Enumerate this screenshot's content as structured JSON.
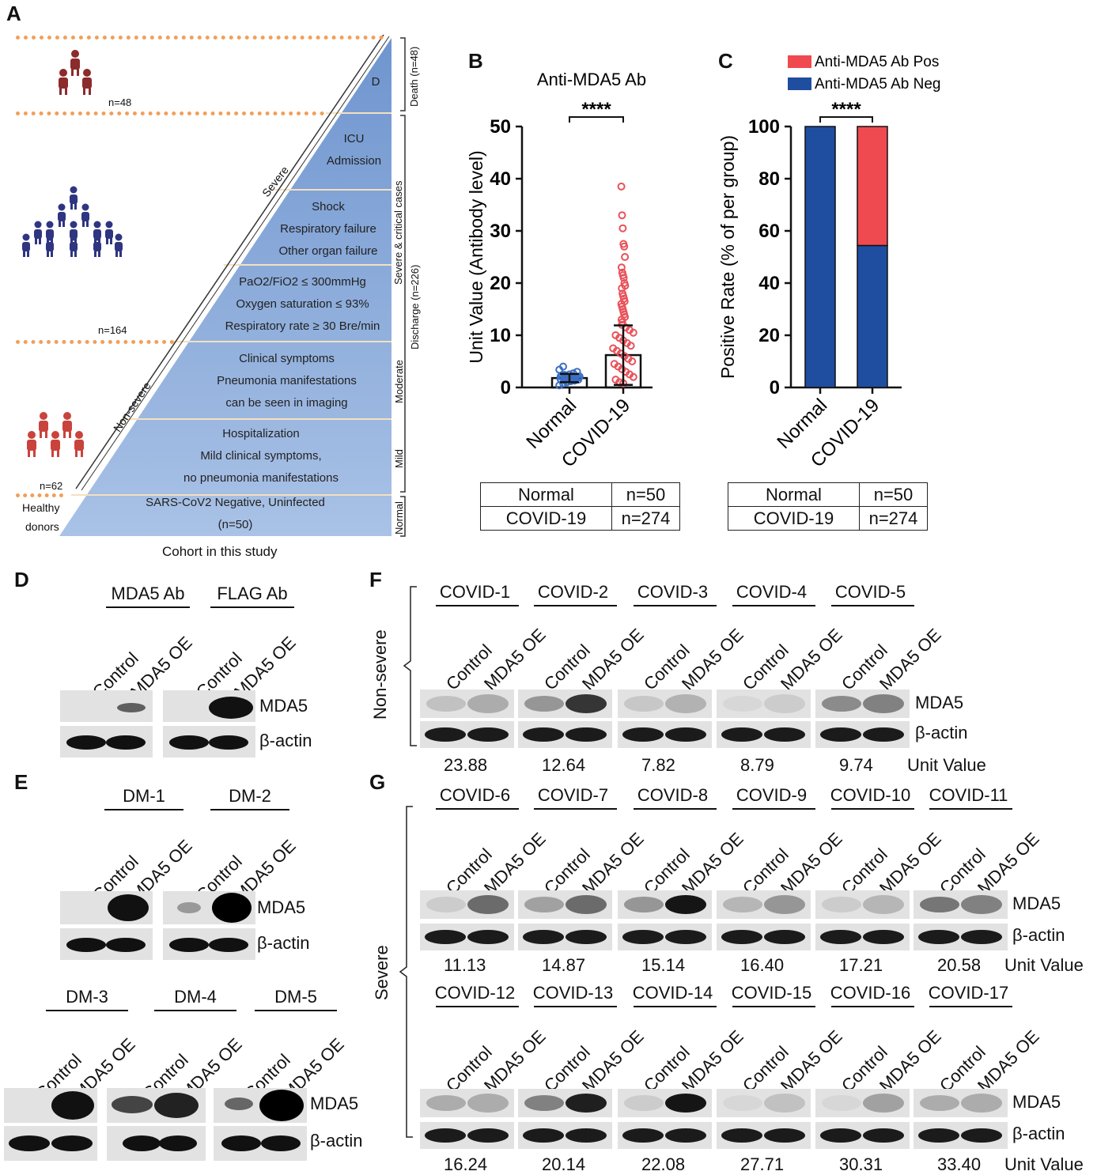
{
  "figure_labels": {
    "A": "A",
    "B": "B",
    "C": "C",
    "D": "D",
    "E": "E",
    "F": "F",
    "G": "G"
  },
  "panelA": {
    "caption": "Cohort in this study",
    "n_top": "n=48",
    "n_mid": "n=164",
    "n_low": "n=62",
    "healthy1": "Healthy",
    "healthy2": "donors",
    "tiers": {
      "death": "D",
      "icu": [
        "ICU",
        "Admission"
      ],
      "shock": [
        "Shock",
        "Respiratory failure",
        "Other organ  failure"
      ],
      "resp": [
        "PaO2/FiO2 ≤ 300mmHg",
        "Oxygen saturation ≤ 93%",
        "Respiratory rate ≥ 30 Bre/min"
      ],
      "moderate": [
        "Clinical symptoms",
        "Pneumonia manifestations",
        "can be seen in imaging"
      ],
      "mild": [
        "Hospitalization",
        "Mild clinical symptoms,",
        "no pneumonia manifestations"
      ],
      "normal": [
        "SARS-CoV2 Negative, Uninfected",
        "(n=50)"
      ]
    },
    "side_labels": {
      "death": "Death (n=48)",
      "severe": "Severe & critical cases",
      "discharge": "Discharge (n=226)",
      "moderate": "Moderate",
      "mild": "Mild",
      "normal": "Normal"
    },
    "diag_severe": "Severe",
    "diag_nonsevere": "Non-severe",
    "colors": {
      "death_group": "#8c2b2b",
      "severe_group": "#2f3580",
      "mild_group": "#c9433c",
      "dotted": "#f0a05a",
      "triangle": "#8fb0dc"
    }
  },
  "chart_data": [
    {
      "type": "scatter",
      "title": "Anti-MDA5 Ab",
      "ylabel": "Unit Value (Antibody level)",
      "categories": [
        "Normal",
        "COVID-19"
      ],
      "ylim": [
        0,
        50
      ],
      "yticks": [
        "0",
        "10",
        "20",
        "30",
        "40",
        "50"
      ],
      "series": [
        {
          "name": "Normal",
          "mean": 1.8,
          "sd": 0.8,
          "values": [
            0.4,
            0.8,
            1.0,
            1.2,
            1.3,
            1.5,
            1.6,
            1.7,
            1.8,
            1.9,
            2.0,
            2.1,
            2.2,
            2.3,
            2.5,
            2.7,
            3.0,
            3.4,
            4.0,
            1.1,
            1.4,
            1.6,
            1.9,
            2.1,
            2.4
          ]
        },
        {
          "name": "COVID-19",
          "mean": 6.2,
          "sd": 5.7,
          "values": [
            38.5,
            33.0,
            30.5,
            27.5,
            27.0,
            25.0,
            23.0,
            22.0,
            21.5,
            21.0,
            20.0,
            19.5,
            19.0,
            18.0,
            17.5,
            17.0,
            16.5,
            16.0,
            15.5,
            15.0,
            14.5,
            14.0,
            13.5,
            13.0,
            12.5,
            12.0,
            11.5,
            11.0,
            10.5,
            10.0,
            9.5,
            9.0,
            8.5,
            8.0,
            7.5,
            7.0,
            6.5,
            6.0,
            5.5,
            5.0,
            4.5,
            4.0,
            3.5,
            3.0,
            2.5,
            2.0,
            1.5,
            1.0,
            0.8
          ]
        }
      ],
      "significance": "****",
      "table": [
        [
          "Normal",
          "n=50"
        ],
        [
          "COVID-19",
          "n=274"
        ]
      ],
      "colors": {
        "normal": "#3b6fc4",
        "covid": "#e8525a"
      }
    },
    {
      "type": "bar",
      "stacked": true,
      "ylabel": "Positive Rate (% of per group)",
      "categories": [
        "Normal",
        "COVID-19"
      ],
      "ylim": [
        0,
        100
      ],
      "yticks": [
        "0",
        "20",
        "40",
        "60",
        "80",
        "100"
      ],
      "series": [
        {
          "name": "Anti-MDA5 Ab Neg",
          "values": [
            100,
            54.4
          ],
          "color": "#1f4ea0"
        },
        {
          "name": "Anti-MDA5 Ab Pos",
          "values": [
            0,
            45.6
          ],
          "color": "#ef4a50"
        }
      ],
      "legend_position": "top",
      "significance": "****",
      "table": [
        [
          "Normal",
          "n=50"
        ],
        [
          "COVID-19",
          "n=274"
        ]
      ]
    }
  ],
  "blots": {
    "lanes": [
      "Control",
      "MDA5 OE"
    ],
    "mda5": "MDA5",
    "actin": "β-actin",
    "unit_value": "Unit Value",
    "panelD": {
      "groups": [
        "MDA5 Ab",
        "FLAG Ab"
      ]
    },
    "panelE": {
      "groups": [
        "DM-1",
        "DM-2",
        "DM-3",
        "DM-4",
        "DM-5"
      ]
    },
    "panelF": {
      "side": "Non-severe",
      "groups": [
        "COVID-1",
        "COVID-2",
        "COVID-3",
        "COVID-4",
        "COVID-5"
      ],
      "values": [
        "23.88",
        "12.64",
        "7.82",
        "8.79",
        "9.74"
      ]
    },
    "panelG": {
      "side": "Severe",
      "row1": {
        "groups": [
          "COVID-6",
          "COVID-7",
          "COVID-8",
          "COVID-9",
          "COVID-10",
          "COVID-11"
        ],
        "values": [
          "11.13",
          "14.87",
          "15.14",
          "16.40",
          "17.21",
          "20.58"
        ]
      },
      "row2": {
        "groups": [
          "COVID-12",
          "COVID-13",
          "COVID-14",
          "COVID-15",
          "COVID-16",
          "COVID-17"
        ],
        "values": [
          "16.24",
          "20.14",
          "22.08",
          "27.71",
          "30.31",
          "33.40"
        ]
      }
    }
  }
}
